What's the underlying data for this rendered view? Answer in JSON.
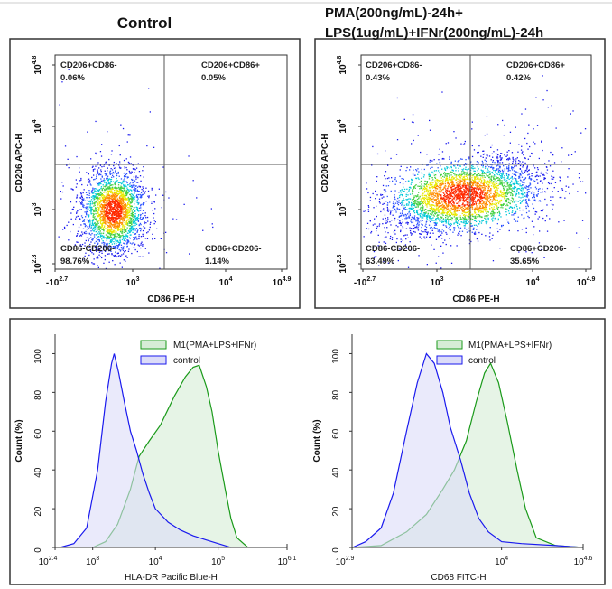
{
  "figure": {
    "titles": {
      "control": "Control",
      "treated_line1": "PMA(200ng/mL)-24h+",
      "treated_line2": "LPS(1ug/mL)+IFNr(200ng/mL)-24h"
    }
  },
  "chart_data": [
    {
      "type": "scatter",
      "title": "Control",
      "xlabel": "CD86 PE-H",
      "ylabel": "CD206 APC-H",
      "x_ticks": [
        {
          "base": "-10",
          "exp": "2.7"
        },
        {
          "base": "10",
          "exp": "3"
        },
        {
          "base": "10",
          "exp": "4"
        },
        {
          "base": "10",
          "exp": "4.9"
        }
      ],
      "y_ticks": [
        {
          "base": "10",
          "exp": "4.8"
        },
        {
          "base": "10",
          "exp": "4"
        },
        {
          "base": "10",
          "exp": "3"
        },
        {
          "base": "10",
          "exp": "2.3"
        }
      ],
      "color_scale": "density (blue-cyan-green-yellow-red)",
      "quadrants": [
        {
          "label": "CD206+CD86-",
          "percent": "0.06%"
        },
        {
          "label": "CD206+CD86+",
          "percent": "0.05%"
        },
        {
          "label": "CD86-CD206-",
          "percent": "98.76%"
        },
        {
          "label": "CD86+CD206-",
          "percent": "1.14%"
        }
      ]
    },
    {
      "type": "scatter",
      "title": "PMA(200ng/mL)-24h+ LPS(1ug/mL)+IFNr(200ng/mL)-24h",
      "xlabel": "CD86 PE-H",
      "ylabel": "CD206 APC-H",
      "x_ticks": [
        {
          "base": "-10",
          "exp": "2.7"
        },
        {
          "base": "10",
          "exp": "3"
        },
        {
          "base": "10",
          "exp": "4"
        },
        {
          "base": "10",
          "exp": "4.9"
        }
      ],
      "y_ticks": [
        {
          "base": "10",
          "exp": "4.8"
        },
        {
          "base": "10",
          "exp": "4"
        },
        {
          "base": "10",
          "exp": "3"
        },
        {
          "base": "10",
          "exp": "2.3"
        }
      ],
      "color_scale": "density (blue-cyan-green-yellow-red)",
      "quadrants": [
        {
          "label": "CD206+CD86-",
          "percent": "0.43%"
        },
        {
          "label": "CD206+CD86+",
          "percent": "0.42%"
        },
        {
          "label": "CD86-CD206-",
          "percent": "63.49%"
        },
        {
          "label": "CD86+CD206-",
          "percent": "35.65%"
        }
      ]
    },
    {
      "type": "area",
      "xlabel": "HLA-DR Pacific Blue-H",
      "ylabel": "Count  (%)",
      "xscale": "log",
      "xlim": [
        251,
        1258925
      ],
      "ylim": [
        0,
        110
      ],
      "x_ticks": [
        {
          "base": "10",
          "exp": "2.4"
        },
        {
          "base": "10",
          "exp": "3"
        },
        {
          "base": "10",
          "exp": "4"
        },
        {
          "base": "10",
          "exp": "5"
        },
        {
          "base": "10",
          "exp": "6.1"
        }
      ],
      "y_ticks": [
        "0",
        "20",
        "40",
        "60",
        "80",
        "100"
      ],
      "legend": "top-right",
      "series": [
        {
          "name": "M1(PMA+LPS+IFNr)",
          "color": "#1a9a1a",
          "fill": "#d6ecd6",
          "points": [
            [
              1000,
              0
            ],
            [
              1600,
              3
            ],
            [
              2500,
              12
            ],
            [
              4000,
              30
            ],
            [
              5500,
              47
            ],
            [
              8000,
              55
            ],
            [
              12000,
              63
            ],
            [
              20000,
              78
            ],
            [
              30000,
              88
            ],
            [
              40000,
              93
            ],
            [
              50000,
              94
            ],
            [
              65000,
              83
            ],
            [
              80000,
              70
            ],
            [
              100000,
              50
            ],
            [
              130000,
              30
            ],
            [
              160000,
              15
            ],
            [
              200000,
              5
            ],
            [
              300000,
              0
            ]
          ]
        },
        {
          "name": "control",
          "color": "#1a1aee",
          "fill": "#dcdcf8",
          "points": [
            [
              300,
              0
            ],
            [
              500,
              2
            ],
            [
              800,
              10
            ],
            [
              1200,
              40
            ],
            [
              1600,
              75
            ],
            [
              2000,
              95
            ],
            [
              2200,
              100
            ],
            [
              2600,
              90
            ],
            [
              3200,
              75
            ],
            [
              4000,
              60
            ],
            [
              5000,
              50
            ],
            [
              6300,
              38
            ],
            [
              8000,
              28
            ],
            [
              10000,
              20
            ],
            [
              16000,
              13
            ],
            [
              25000,
              9
            ],
            [
              40000,
              6
            ],
            [
              63000,
              4
            ],
            [
              100000,
              2
            ],
            [
              160000,
              0
            ]
          ]
        }
      ]
    },
    {
      "type": "area",
      "xlabel": "CD68 FITC-H",
      "ylabel": "Count  (%)",
      "xscale": "log",
      "xlim": [
        794,
        39811
      ],
      "ylim": [
        0,
        110
      ],
      "x_ticks": [
        {
          "base": "10",
          "exp": "2.9"
        },
        {
          "base": "10",
          "exp": "4"
        },
        {
          "base": "10",
          "exp": "4.6"
        }
      ],
      "y_ticks": [
        "0",
        "20",
        "40",
        "60",
        "80",
        "100"
      ],
      "legend": "top-right",
      "series": [
        {
          "name": "M1(PMA+LPS+IFNr)",
          "color": "#1a9a1a",
          "fill": "#d6ecd6",
          "points": [
            [
              800,
              0
            ],
            [
              1300,
              1
            ],
            [
              2000,
              8
            ],
            [
              2800,
              17
            ],
            [
              3700,
              30
            ],
            [
              4500,
              40
            ],
            [
              5500,
              55
            ],
            [
              6500,
              75
            ],
            [
              7500,
              90
            ],
            [
              8300,
              95
            ],
            [
              9500,
              85
            ],
            [
              11000,
              65
            ],
            [
              13000,
              40
            ],
            [
              15000,
              20
            ],
            [
              18000,
              5
            ],
            [
              25000,
              1
            ],
            [
              40000,
              0
            ]
          ]
        },
        {
          "name": "control",
          "color": "#1a1aee",
          "fill": "#dcdcf8",
          "points": [
            [
              800,
              0
            ],
            [
              1000,
              3
            ],
            [
              1300,
              10
            ],
            [
              1600,
              28
            ],
            [
              2000,
              60
            ],
            [
              2400,
              85
            ],
            [
              2800,
              100
            ],
            [
              3200,
              95
            ],
            [
              3700,
              80
            ],
            [
              4200,
              62
            ],
            [
              5000,
              45
            ],
            [
              5800,
              28
            ],
            [
              6800,
              15
            ],
            [
              8000,
              8
            ],
            [
              10000,
              3
            ],
            [
              14000,
              2
            ],
            [
              25000,
              1
            ],
            [
              40000,
              0
            ]
          ]
        }
      ]
    }
  ]
}
